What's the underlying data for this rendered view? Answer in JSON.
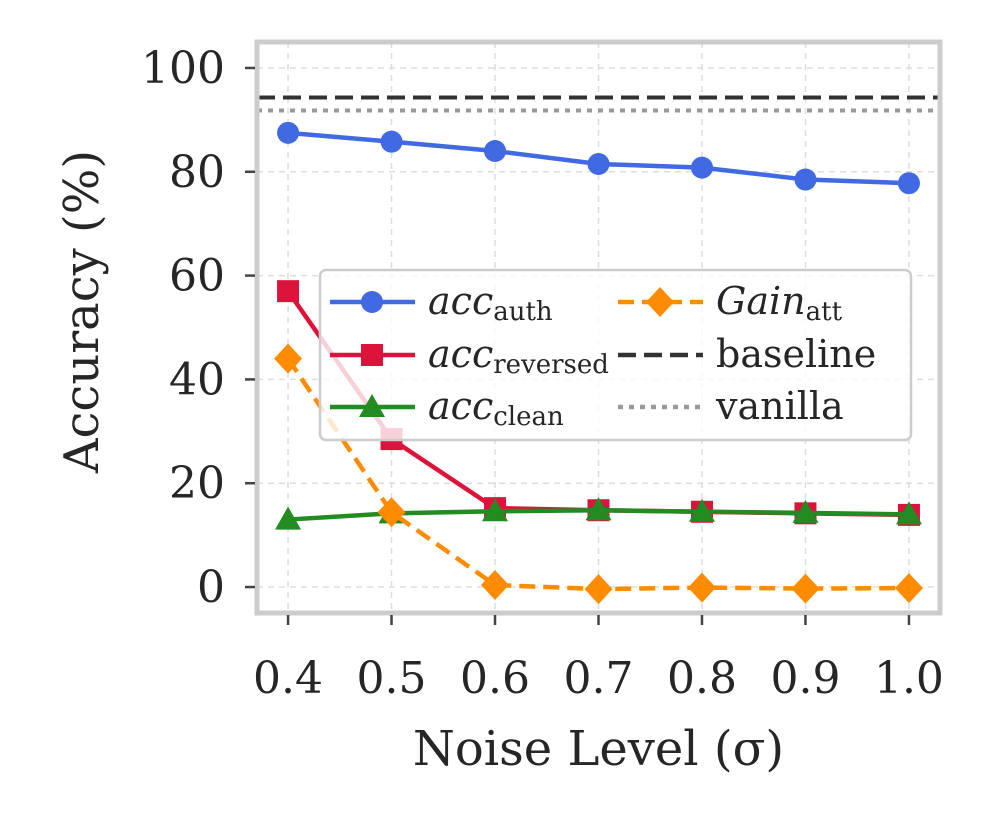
{
  "chart_data": {
    "type": "line",
    "title": "",
    "xlabel": "Noise Level (σ)",
    "ylabel": "Accuracy (%)",
    "x": [
      0.4,
      0.5,
      0.6,
      0.7,
      0.8,
      0.9,
      1.0
    ],
    "x_tick_labels": [
      "0.4",
      "0.5",
      "0.6",
      "0.7",
      "0.8",
      "0.9",
      "1.0"
    ],
    "y_ticks": [
      0,
      20,
      40,
      60,
      80,
      100
    ],
    "y_tick_labels": [
      "0",
      "20",
      "40",
      "60",
      "80",
      "100"
    ],
    "xlim": [
      0.37,
      1.03
    ],
    "ylim": [
      -5,
      105
    ],
    "grid": true,
    "legend_position": "center-right",
    "series": [
      {
        "key": "acc-auth",
        "name_main": "acc",
        "name_sub": "auth",
        "italic": true,
        "color": "#4169E1",
        "marker": "circle",
        "dash": "solid",
        "values": [
          87.5,
          85.8,
          84.0,
          81.5,
          80.8,
          78.5,
          77.8
        ]
      },
      {
        "key": "acc-reversed",
        "name_main": "acc",
        "name_sub": "reversed",
        "italic": true,
        "color": "#DC143C",
        "marker": "square",
        "dash": "solid",
        "values": [
          57.0,
          28.5,
          15.2,
          14.8,
          14.5,
          14.2,
          13.9
        ]
      },
      {
        "key": "acc-clean",
        "name_main": "acc",
        "name_sub": "clean",
        "italic": true,
        "color": "#228B22",
        "marker": "triangle",
        "dash": "solid",
        "values": [
          13.0,
          14.2,
          14.6,
          14.8,
          14.5,
          14.3,
          14.0
        ]
      },
      {
        "key": "gain-att",
        "name_main": "Gain",
        "name_sub": "att",
        "italic": true,
        "color": "#FF8C00",
        "marker": "diamond",
        "dash": "dashed",
        "values": [
          44.0,
          14.4,
          0.4,
          -0.4,
          -0.1,
          -0.3,
          -0.2
        ]
      }
    ],
    "reference_lines": [
      {
        "key": "baseline",
        "name": "baseline",
        "value": 94.3,
        "color": "#333333",
        "dash": "dashed"
      },
      {
        "key": "vanilla",
        "name": "vanilla",
        "value": 91.8,
        "color": "#999999",
        "dash": "dotted"
      }
    ]
  }
}
